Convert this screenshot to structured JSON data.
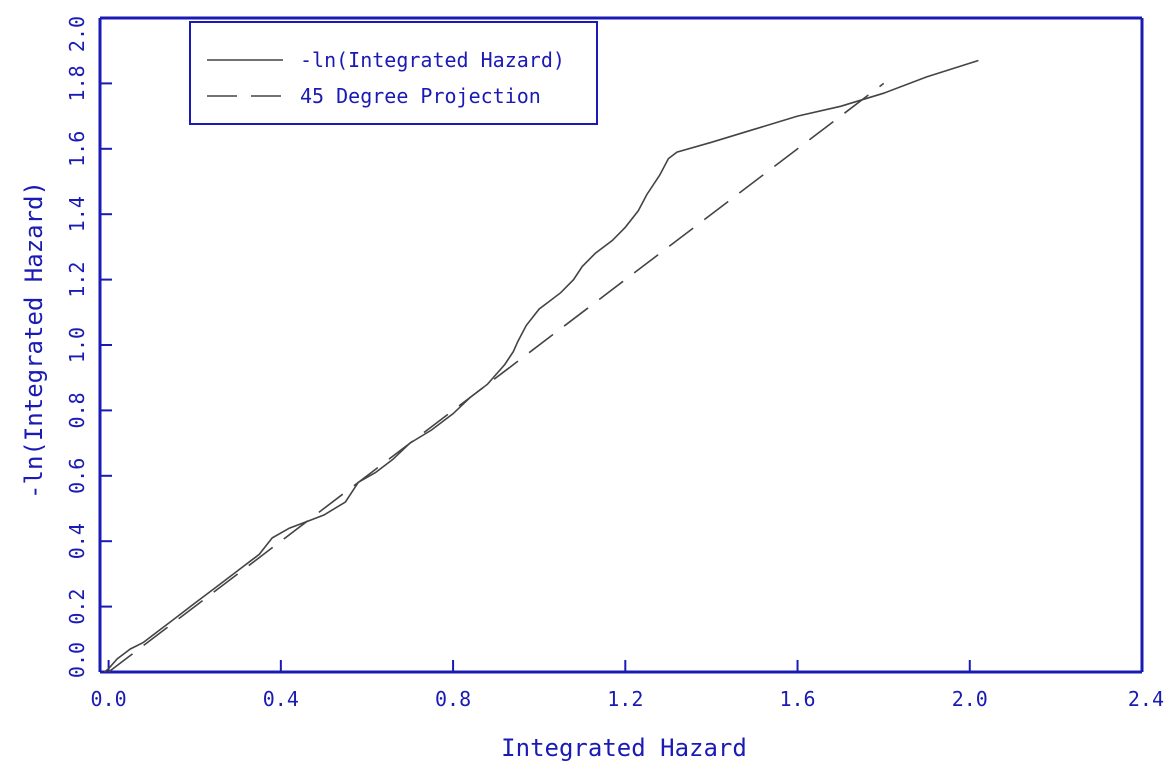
{
  "chart_data": {
    "type": "line",
    "title": "",
    "xlabel": "Integrated Hazard",
    "ylabel": "-ln(Integrated Hazard)",
    "xlim": [
      -0.02,
      2.4
    ],
    "ylim": [
      0.0,
      2.0
    ],
    "xticks": [
      "0.0",
      "0.4",
      "0.8",
      "1.2",
      "1.6",
      "2.0",
      "2.4"
    ],
    "yticks": [
      "0.0",
      "0.2",
      "0.4",
      "0.6",
      "0.8",
      "1.0",
      "1.2",
      "1.4",
      "1.6",
      "1.8",
      "2.0"
    ],
    "grid": false,
    "legend_position": "top-left",
    "series": [
      {
        "name": "-ln(Integrated Hazard)",
        "style": "solid",
        "color": "#444444",
        "x": [
          -0.01,
          0.0,
          0.02,
          0.05,
          0.08,
          0.12,
          0.15,
          0.2,
          0.25,
          0.3,
          0.35,
          0.38,
          0.42,
          0.46,
          0.5,
          0.55,
          0.58,
          0.62,
          0.66,
          0.7,
          0.75,
          0.8,
          0.84,
          0.88,
          0.9,
          0.92,
          0.94,
          0.95,
          0.97,
          1.0,
          1.02,
          1.05,
          1.08,
          1.1,
          1.13,
          1.17,
          1.2,
          1.23,
          1.25,
          1.28,
          1.3,
          1.32,
          1.4,
          1.5,
          1.6,
          1.7,
          1.8,
          1.9,
          2.02
        ],
        "y": [
          0.0,
          0.01,
          0.04,
          0.07,
          0.09,
          0.13,
          0.16,
          0.21,
          0.26,
          0.31,
          0.36,
          0.41,
          0.44,
          0.46,
          0.48,
          0.52,
          0.58,
          0.61,
          0.65,
          0.7,
          0.74,
          0.79,
          0.84,
          0.88,
          0.91,
          0.94,
          0.98,
          1.01,
          1.06,
          1.11,
          1.13,
          1.16,
          1.2,
          1.24,
          1.28,
          1.32,
          1.36,
          1.41,
          1.46,
          1.52,
          1.57,
          1.59,
          1.62,
          1.66,
          1.7,
          1.73,
          1.77,
          1.82,
          1.87
        ]
      },
      {
        "name": "45 Degree Projection",
        "style": "dashed",
        "color": "#444444",
        "x": [
          0.0,
          1.8
        ],
        "y": [
          0.0,
          1.8
        ]
      }
    ]
  }
}
